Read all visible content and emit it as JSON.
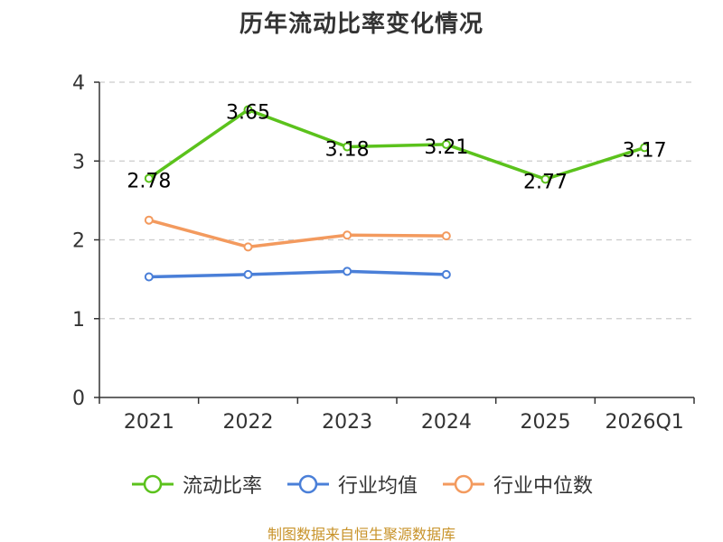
{
  "title": "历年流动比率变化情况",
  "source_note": "制图数据来自恒生聚源数据库",
  "colors": {
    "grid": "#cccccc",
    "axis": "#333333",
    "text": "#333333",
    "source": "#c8932a"
  },
  "chart_data": {
    "type": "line",
    "title": "历年流动比率变化情况",
    "categories": [
      "2021",
      "2022",
      "2023",
      "2024",
      "2025",
      "2026Q1"
    ],
    "ylim": [
      0,
      4
    ],
    "yticks": [
      "0",
      "1",
      "2",
      "3",
      "4"
    ],
    "grid": "y-dashed",
    "legend_position": "bottom-center",
    "series": [
      {
        "name": "流动比率",
        "color": "#5bc21c",
        "values": [
          2.78,
          3.65,
          3.18,
          3.21,
          2.77,
          3.17
        ],
        "labels": [
          "2.78",
          "3.65",
          "3.18",
          "3.21",
          "2.77",
          "3.17"
        ],
        "show_labels": true
      },
      {
        "name": "行业均值",
        "color": "#4a7fd8",
        "values": [
          1.53,
          1.56,
          1.6,
          1.56,
          null,
          null
        ],
        "show_labels": false
      },
      {
        "name": "行业中位数",
        "color": "#f39a5e",
        "values": [
          2.25,
          1.91,
          2.06,
          2.05,
          null,
          null
        ],
        "show_labels": false
      }
    ]
  }
}
